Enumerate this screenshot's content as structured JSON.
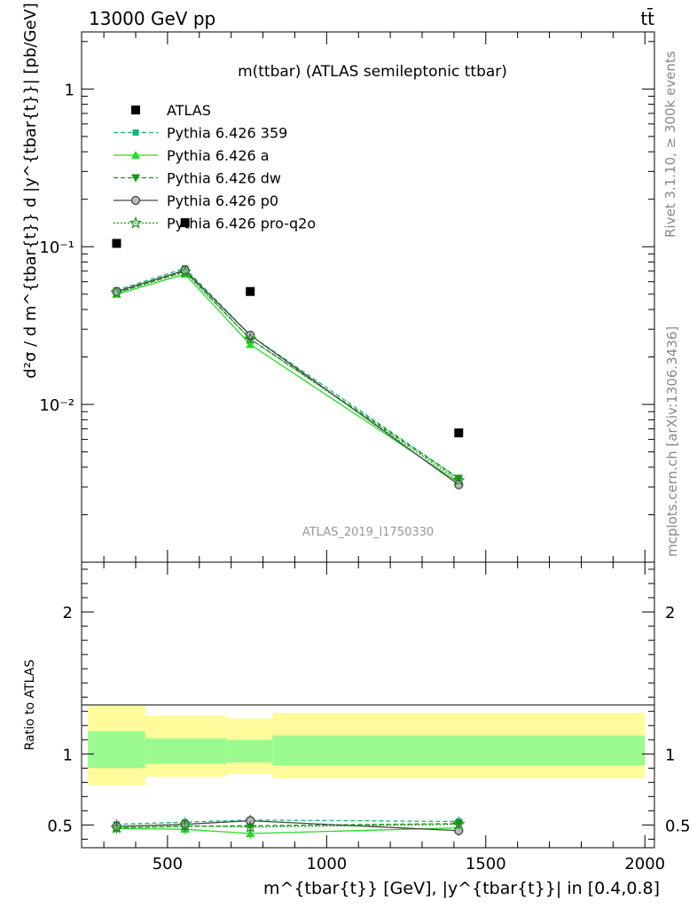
{
  "header": {
    "energy_label": "13000 GeV pp",
    "process_label": "tt̄",
    "rivet_label": "Rivet 3.1.10, ≥ 300k events",
    "mcplots_label": "mcplots.cern.ch [arXiv:1306.3436]"
  },
  "colors": {
    "atlas": "#000000",
    "p359": "#10b87a",
    "pa": "#22dd22",
    "pdw": "#0d9a0d",
    "pp0": "#444444",
    "pq2o": "#1f8f1f",
    "band_outer": "#fffa9a",
    "band_inner": "#9afa8e"
  },
  "chart_data": [
    {
      "type": "scatter",
      "title": "m(ttbar) (ATLAS semileptonic ttbar)",
      "watermark": "ATLAS_2019_I1750330",
      "ylabel": "d²σ / d m^{tbar{t}} d |y^{tbar{t}}| [pb/GeV]",
      "yscale": "log",
      "ylim": [
        0.001,
        2.3
      ],
      "xlim": [
        230,
        2030
      ],
      "y_tick_labels": [
        "1",
        "10⁻¹",
        "10⁻²"
      ],
      "legend_position": "top-left",
      "data_series": {
        "name": "ATLAS",
        "x": [
          340,
          555,
          760,
          1415
        ],
        "values": [
          0.105,
          0.142,
          0.052,
          0.0066
        ]
      },
      "series": [
        {
          "name": "Pythia 6.426 359",
          "key": "p359",
          "x": [
            340,
            555,
            760,
            1415
          ],
          "values": [
            0.053,
            0.073,
            0.0275,
            0.0034
          ]
        },
        {
          "name": "Pythia 6.426 a",
          "key": "pa",
          "x": [
            340,
            555,
            760,
            1415
          ],
          "values": [
            0.05,
            0.067,
            0.024,
            0.0032
          ]
        },
        {
          "name": "Pythia 6.426 dw",
          "key": "pdw",
          "x": [
            340,
            555,
            760,
            1415
          ],
          "values": [
            0.051,
            0.07,
            0.026,
            0.0034
          ]
        },
        {
          "name": "Pythia 6.426 p0",
          "key": "pp0",
          "x": [
            340,
            555,
            760,
            1415
          ],
          "values": [
            0.052,
            0.071,
            0.0275,
            0.0031
          ]
        },
        {
          "name": "Pythia 6.426 pro-q2o",
          "key": "pq2o",
          "x": [
            340,
            555,
            760,
            1415
          ],
          "values": [
            0.051,
            0.069,
            0.026,
            0.0033
          ]
        }
      ]
    },
    {
      "type": "line",
      "ylabel": "Ratio to ATLAS",
      "xlabel": "m^{tbar{t}} [GeV], |y^{tbar{t}}| in [0.4,0.8]",
      "xlim": [
        230,
        2030
      ],
      "ylim": [
        0.34,
        2.35
      ],
      "x_ticks": [
        "500",
        "1000",
        "1500",
        "2000"
      ],
      "y_ticks": [
        "0.5",
        "1",
        "2"
      ],
      "bands": {
        "edges": [
          250,
          430,
          685,
          830,
          2000
        ],
        "outer": [
          [
            0.78,
            1.34
          ],
          [
            0.84,
            1.27
          ],
          [
            0.86,
            1.25
          ],
          [
            0.83,
            1.29
          ]
        ],
        "inner": [
          [
            0.9,
            1.16
          ],
          [
            0.93,
            1.11
          ],
          [
            0.94,
            1.1
          ],
          [
            0.92,
            1.13
          ]
        ]
      },
      "series": [
        {
          "name": "Pythia 6.426 359",
          "key": "p359",
          "x": [
            340,
            555,
            760,
            1415
          ],
          "values": [
            0.505,
            0.52,
            0.535,
            0.525
          ]
        },
        {
          "name": "Pythia 6.426 a",
          "key": "pa",
          "x": [
            340,
            555,
            760,
            1415
          ],
          "values": [
            0.475,
            0.47,
            0.44,
            0.48
          ]
        },
        {
          "name": "Pythia 6.426 dw",
          "key": "pdw",
          "x": [
            340,
            555,
            760,
            1415
          ],
          "values": [
            0.48,
            0.49,
            0.495,
            0.51
          ]
        },
        {
          "name": "Pythia 6.426 p0",
          "key": "pp0",
          "x": [
            340,
            555,
            760,
            1415
          ],
          "values": [
            0.49,
            0.505,
            0.53,
            0.46
          ]
        },
        {
          "name": "Pythia 6.426 pro-q2o",
          "key": "pq2o",
          "x": [
            340,
            555,
            760,
            1415
          ],
          "values": [
            0.48,
            0.495,
            0.485,
            0.505
          ]
        }
      ]
    }
  ]
}
